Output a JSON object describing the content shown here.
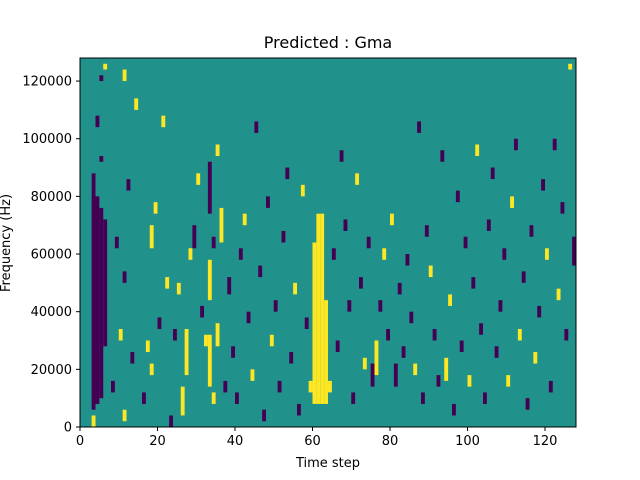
{
  "chart_data": {
    "type": "heatmap",
    "title": "Predicted : Gma",
    "xlabel": "Time step",
    "ylabel": "Frequency (Hz)",
    "xlim": [
      0,
      128
    ],
    "ylim": [
      0,
      128000
    ],
    "x_ticks": [
      "0",
      "20",
      "40",
      "60",
      "80",
      "100",
      "120"
    ],
    "y_ticks": [
      "0",
      "20000",
      "40000",
      "60000",
      "80000",
      "100000",
      "120000"
    ],
    "grid": false,
    "legend": "none",
    "colormap": {
      "low": "#440154",
      "mid": "#21918c",
      "high": "#fde725"
    },
    "background_value": 0,
    "cell_size": {
      "time_steps": 1,
      "hz": 2000
    },
    "cells_note": "value -1 = low (dark purple), 1 = high (yellow), background = mid (teal)",
    "cells": [
      {
        "x": 3,
        "y0": 0,
        "y1": 4000,
        "v": 1
      },
      {
        "x": 3,
        "y0": 6000,
        "y1": 88000,
        "v": -1
      },
      {
        "x": 4,
        "y0": 8000,
        "y1": 80000,
        "v": -1
      },
      {
        "x": 5,
        "y0": 10000,
        "y1": 76000,
        "v": -1
      },
      {
        "x": 6,
        "y0": 28000,
        "y1": 72000,
        "v": -1
      },
      {
        "x": 5,
        "y0": 92000,
        "y1": 94000,
        "v": -1
      },
      {
        "x": 4,
        "y0": 104000,
        "y1": 108000,
        "v": -1
      },
      {
        "x": 5,
        "y0": 120000,
        "y1": 122000,
        "v": -1
      },
      {
        "x": 6,
        "y0": 124000,
        "y1": 126000,
        "v": 1
      },
      {
        "x": 8,
        "y0": 12000,
        "y1": 16000,
        "v": -1
      },
      {
        "x": 9,
        "y0": 62000,
        "y1": 66000,
        "v": -1
      },
      {
        "x": 10,
        "y0": 30000,
        "y1": 34000,
        "v": 1
      },
      {
        "x": 11,
        "y0": 2000,
        "y1": 6000,
        "v": 1
      },
      {
        "x": 11,
        "y0": 50000,
        "y1": 54000,
        "v": -1
      },
      {
        "x": 11,
        "y0": 120000,
        "y1": 124000,
        "v": 1
      },
      {
        "x": 12,
        "y0": 82000,
        "y1": 86000,
        "v": -1
      },
      {
        "x": 13,
        "y0": 22000,
        "y1": 26000,
        "v": -1
      },
      {
        "x": 14,
        "y0": 110000,
        "y1": 114000,
        "v": 1
      },
      {
        "x": 16,
        "y0": 8000,
        "y1": 12000,
        "v": -1
      },
      {
        "x": 17,
        "y0": 26000,
        "y1": 30000,
        "v": 1
      },
      {
        "x": 18,
        "y0": 18000,
        "y1": 22000,
        "v": 1
      },
      {
        "x": 18,
        "y0": 62000,
        "y1": 70000,
        "v": 1
      },
      {
        "x": 19,
        "y0": 74000,
        "y1": 78000,
        "v": 1
      },
      {
        "x": 20,
        "y0": 34000,
        "y1": 38000,
        "v": -1
      },
      {
        "x": 21,
        "y0": 104000,
        "y1": 108000,
        "v": 1
      },
      {
        "x": 22,
        "y0": 48000,
        "y1": 52000,
        "v": 1
      },
      {
        "x": 23,
        "y0": 0,
        "y1": 4000,
        "v": -1
      },
      {
        "x": 24,
        "y0": 30000,
        "y1": 34000,
        "v": -1
      },
      {
        "x": 25,
        "y0": 46000,
        "y1": 50000,
        "v": 1
      },
      {
        "x": 26,
        "y0": 4000,
        "y1": 14000,
        "v": 1
      },
      {
        "x": 27,
        "y0": 18000,
        "y1": 34000,
        "v": 1
      },
      {
        "x": 28,
        "y0": 58000,
        "y1": 62000,
        "v": 1
      },
      {
        "x": 29,
        "y0": 62000,
        "y1": 70000,
        "v": -1
      },
      {
        "x": 30,
        "y0": 84000,
        "y1": 88000,
        "v": 1
      },
      {
        "x": 31,
        "y0": 38000,
        "y1": 42000,
        "v": -1
      },
      {
        "x": 32,
        "y0": 28000,
        "y1": 32000,
        "v": 1
      },
      {
        "x": 33,
        "y0": 14000,
        "y1": 32000,
        "v": 1
      },
      {
        "x": 33,
        "y0": 44000,
        "y1": 58000,
        "v": 1
      },
      {
        "x": 33,
        "y0": 74000,
        "y1": 92000,
        "v": -1
      },
      {
        "x": 34,
        "y0": 8000,
        "y1": 12000,
        "v": 1
      },
      {
        "x": 34,
        "y0": 62000,
        "y1": 66000,
        "v": -1
      },
      {
        "x": 35,
        "y0": 28000,
        "y1": 36000,
        "v": 1
      },
      {
        "x": 35,
        "y0": 94000,
        "y1": 98000,
        "v": 1
      },
      {
        "x": 36,
        "y0": 64000,
        "y1": 76000,
        "v": 1
      },
      {
        "x": 37,
        "y0": 12000,
        "y1": 16000,
        "v": -1
      },
      {
        "x": 38,
        "y0": 46000,
        "y1": 52000,
        "v": -1
      },
      {
        "x": 39,
        "y0": 24000,
        "y1": 28000,
        "v": -1
      },
      {
        "x": 40,
        "y0": 8000,
        "y1": 12000,
        "v": -1
      },
      {
        "x": 41,
        "y0": 58000,
        "y1": 62000,
        "v": -1
      },
      {
        "x": 42,
        "y0": 70000,
        "y1": 74000,
        "v": 1
      },
      {
        "x": 43,
        "y0": 36000,
        "y1": 40000,
        "v": -1
      },
      {
        "x": 44,
        "y0": 16000,
        "y1": 20000,
        "v": 1
      },
      {
        "x": 45,
        "y0": 102000,
        "y1": 106000,
        "v": -1
      },
      {
        "x": 46,
        "y0": 52000,
        "y1": 56000,
        "v": -1
      },
      {
        "x": 47,
        "y0": 2000,
        "y1": 6000,
        "v": -1
      },
      {
        "x": 48,
        "y0": 76000,
        "y1": 80000,
        "v": -1
      },
      {
        "x": 49,
        "y0": 28000,
        "y1": 32000,
        "v": 1
      },
      {
        "x": 50,
        "y0": 40000,
        "y1": 44000,
        "v": -1
      },
      {
        "x": 51,
        "y0": 12000,
        "y1": 16000,
        "v": -1
      },
      {
        "x": 52,
        "y0": 64000,
        "y1": 68000,
        "v": -1
      },
      {
        "x": 53,
        "y0": 86000,
        "y1": 90000,
        "v": -1
      },
      {
        "x": 54,
        "y0": 22000,
        "y1": 26000,
        "v": -1
      },
      {
        "x": 55,
        "y0": 46000,
        "y1": 50000,
        "v": 1
      },
      {
        "x": 56,
        "y0": 4000,
        "y1": 8000,
        "v": -1
      },
      {
        "x": 57,
        "y0": 80000,
        "y1": 84000,
        "v": 1
      },
      {
        "x": 58,
        "y0": 34000,
        "y1": 38000,
        "v": -1
      },
      {
        "x": 59,
        "y0": 12000,
        "y1": 16000,
        "v": 1
      },
      {
        "x": 60,
        "y0": 8000,
        "y1": 64000,
        "v": 1
      },
      {
        "x": 61,
        "y0": 8000,
        "y1": 74000,
        "v": 1
      },
      {
        "x": 62,
        "y0": 8000,
        "y1": 74000,
        "v": 1
      },
      {
        "x": 63,
        "y0": 8000,
        "y1": 44000,
        "v": 1
      },
      {
        "x": 64,
        "y0": 12000,
        "y1": 16000,
        "v": 1
      },
      {
        "x": 65,
        "y0": 58000,
        "y1": 62000,
        "v": -1
      },
      {
        "x": 66,
        "y0": 26000,
        "y1": 30000,
        "v": -1
      },
      {
        "x": 67,
        "y0": 92000,
        "y1": 96000,
        "v": -1
      },
      {
        "x": 68,
        "y0": 68000,
        "y1": 72000,
        "v": -1
      },
      {
        "x": 69,
        "y0": 40000,
        "y1": 44000,
        "v": -1
      },
      {
        "x": 70,
        "y0": 8000,
        "y1": 12000,
        "v": -1
      },
      {
        "x": 71,
        "y0": 84000,
        "y1": 88000,
        "v": 1
      },
      {
        "x": 72,
        "y0": 48000,
        "y1": 52000,
        "v": -1
      },
      {
        "x": 73,
        "y0": 20000,
        "y1": 24000,
        "v": 1
      },
      {
        "x": 74,
        "y0": 62000,
        "y1": 66000,
        "v": -1
      },
      {
        "x": 75,
        "y0": 14000,
        "y1": 22000,
        "v": -1
      },
      {
        "x": 76,
        "y0": 18000,
        "y1": 30000,
        "v": 1
      },
      {
        "x": 77,
        "y0": 40000,
        "y1": 44000,
        "v": -1
      },
      {
        "x": 78,
        "y0": 58000,
        "y1": 62000,
        "v": 1
      },
      {
        "x": 79,
        "y0": 30000,
        "y1": 34000,
        "v": -1
      },
      {
        "x": 80,
        "y0": 70000,
        "y1": 74000,
        "v": 1
      },
      {
        "x": 81,
        "y0": 14000,
        "y1": 22000,
        "v": -1
      },
      {
        "x": 82,
        "y0": 46000,
        "y1": 50000,
        "v": -1
      },
      {
        "x": 83,
        "y0": 24000,
        "y1": 28000,
        "v": -1
      },
      {
        "x": 84,
        "y0": 56000,
        "y1": 60000,
        "v": -1
      },
      {
        "x": 85,
        "y0": 36000,
        "y1": 40000,
        "v": -1
      },
      {
        "x": 86,
        "y0": 18000,
        "y1": 22000,
        "v": 1
      },
      {
        "x": 87,
        "y0": 102000,
        "y1": 106000,
        "v": -1
      },
      {
        "x": 88,
        "y0": 8000,
        "y1": 12000,
        "v": -1
      },
      {
        "x": 89,
        "y0": 66000,
        "y1": 70000,
        "v": -1
      },
      {
        "x": 90,
        "y0": 52000,
        "y1": 56000,
        "v": 1
      },
      {
        "x": 91,
        "y0": 30000,
        "y1": 34000,
        "v": -1
      },
      {
        "x": 92,
        "y0": 14000,
        "y1": 18000,
        "v": -1
      },
      {
        "x": 93,
        "y0": 92000,
        "y1": 96000,
        "v": -1
      },
      {
        "x": 94,
        "y0": 16000,
        "y1": 24000,
        "v": 1
      },
      {
        "x": 95,
        "y0": 42000,
        "y1": 46000,
        "v": 1
      },
      {
        "x": 96,
        "y0": 4000,
        "y1": 8000,
        "v": -1
      },
      {
        "x": 97,
        "y0": 78000,
        "y1": 82000,
        "v": -1
      },
      {
        "x": 98,
        "y0": 26000,
        "y1": 30000,
        "v": -1
      },
      {
        "x": 99,
        "y0": 62000,
        "y1": 66000,
        "v": -1
      },
      {
        "x": 100,
        "y0": 14000,
        "y1": 18000,
        "v": 1
      },
      {
        "x": 101,
        "y0": 48000,
        "y1": 52000,
        "v": -1
      },
      {
        "x": 102,
        "y0": 94000,
        "y1": 98000,
        "v": 1
      },
      {
        "x": 103,
        "y0": 32000,
        "y1": 36000,
        "v": -1
      },
      {
        "x": 104,
        "y0": 8000,
        "y1": 12000,
        "v": -1
      },
      {
        "x": 105,
        "y0": 68000,
        "y1": 72000,
        "v": -1
      },
      {
        "x": 106,
        "y0": 86000,
        "y1": 90000,
        "v": -1
      },
      {
        "x": 107,
        "y0": 24000,
        "y1": 28000,
        "v": -1
      },
      {
        "x": 108,
        "y0": 40000,
        "y1": 44000,
        "v": -1
      },
      {
        "x": 109,
        "y0": 58000,
        "y1": 62000,
        "v": -1
      },
      {
        "x": 110,
        "y0": 14000,
        "y1": 18000,
        "v": 1
      },
      {
        "x": 111,
        "y0": 76000,
        "y1": 80000,
        "v": 1
      },
      {
        "x": 112,
        "y0": 96000,
        "y1": 100000,
        "v": -1
      },
      {
        "x": 113,
        "y0": 30000,
        "y1": 34000,
        "v": 1
      },
      {
        "x": 114,
        "y0": 50000,
        "y1": 54000,
        "v": -1
      },
      {
        "x": 115,
        "y0": 6000,
        "y1": 10000,
        "v": -1
      },
      {
        "x": 116,
        "y0": 66000,
        "y1": 70000,
        "v": -1
      },
      {
        "x": 117,
        "y0": 22000,
        "y1": 26000,
        "v": 1
      },
      {
        "x": 118,
        "y0": 38000,
        "y1": 42000,
        "v": -1
      },
      {
        "x": 119,
        "y0": 82000,
        "y1": 86000,
        "v": -1
      },
      {
        "x": 120,
        "y0": 58000,
        "y1": 62000,
        "v": 1
      },
      {
        "x": 121,
        "y0": 12000,
        "y1": 16000,
        "v": -1
      },
      {
        "x": 122,
        "y0": 96000,
        "y1": 100000,
        "v": -1
      },
      {
        "x": 123,
        "y0": 44000,
        "y1": 48000,
        "v": 1
      },
      {
        "x": 124,
        "y0": 74000,
        "y1": 78000,
        "v": -1
      },
      {
        "x": 125,
        "y0": 30000,
        "y1": 34000,
        "v": -1
      },
      {
        "x": 126,
        "y0": 124000,
        "y1": 126000,
        "v": 1
      },
      {
        "x": 127,
        "y0": 56000,
        "y1": 66000,
        "v": -1
      }
    ]
  }
}
